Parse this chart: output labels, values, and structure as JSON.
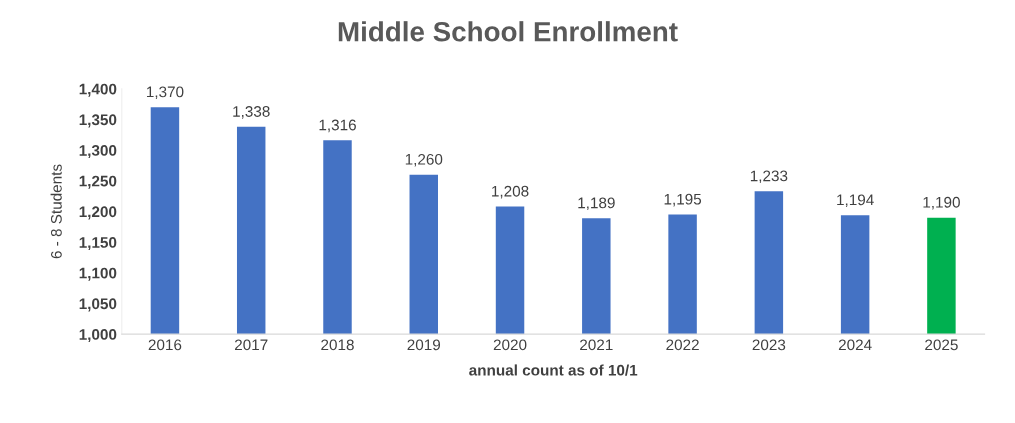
{
  "chart_data": {
    "type": "bar",
    "title": "Middle School Enrollment",
    "xlabel": "annual count as of 10/1",
    "ylabel": "6 - 8 Students",
    "categories": [
      "2016",
      "2017",
      "2018",
      "2019",
      "2020",
      "2021",
      "2022",
      "2023",
      "2024",
      "2025"
    ],
    "values": [
      1370,
      1338,
      1316,
      1260,
      1208,
      1189,
      1195,
      1233,
      1194,
      1190
    ],
    "colors": [
      "#4472c4",
      "#4472c4",
      "#4472c4",
      "#4472c4",
      "#4472c4",
      "#4472c4",
      "#4472c4",
      "#4472c4",
      "#4472c4",
      "#00b050"
    ],
    "value_labels": [
      "1,370",
      "1,338",
      "1,316",
      "1,260",
      "1,208",
      "1,189",
      "1,195",
      "1,233",
      "1,194",
      "1,190"
    ],
    "ylim": [
      1000,
      1400
    ],
    "yticks": [
      {
        "value": 1000,
        "label": "1,000"
      },
      {
        "value": 1050,
        "label": "1,050"
      },
      {
        "value": 1100,
        "label": "1,100"
      },
      {
        "value": 1150,
        "label": "1,150"
      },
      {
        "value": 1200,
        "label": "1,200"
      },
      {
        "value": 1250,
        "label": "1,250"
      },
      {
        "value": 1300,
        "label": "1,300"
      },
      {
        "value": 1350,
        "label": "1,350"
      },
      {
        "value": 1400,
        "label": "1,400"
      }
    ],
    "grid": false,
    "legend": false
  }
}
